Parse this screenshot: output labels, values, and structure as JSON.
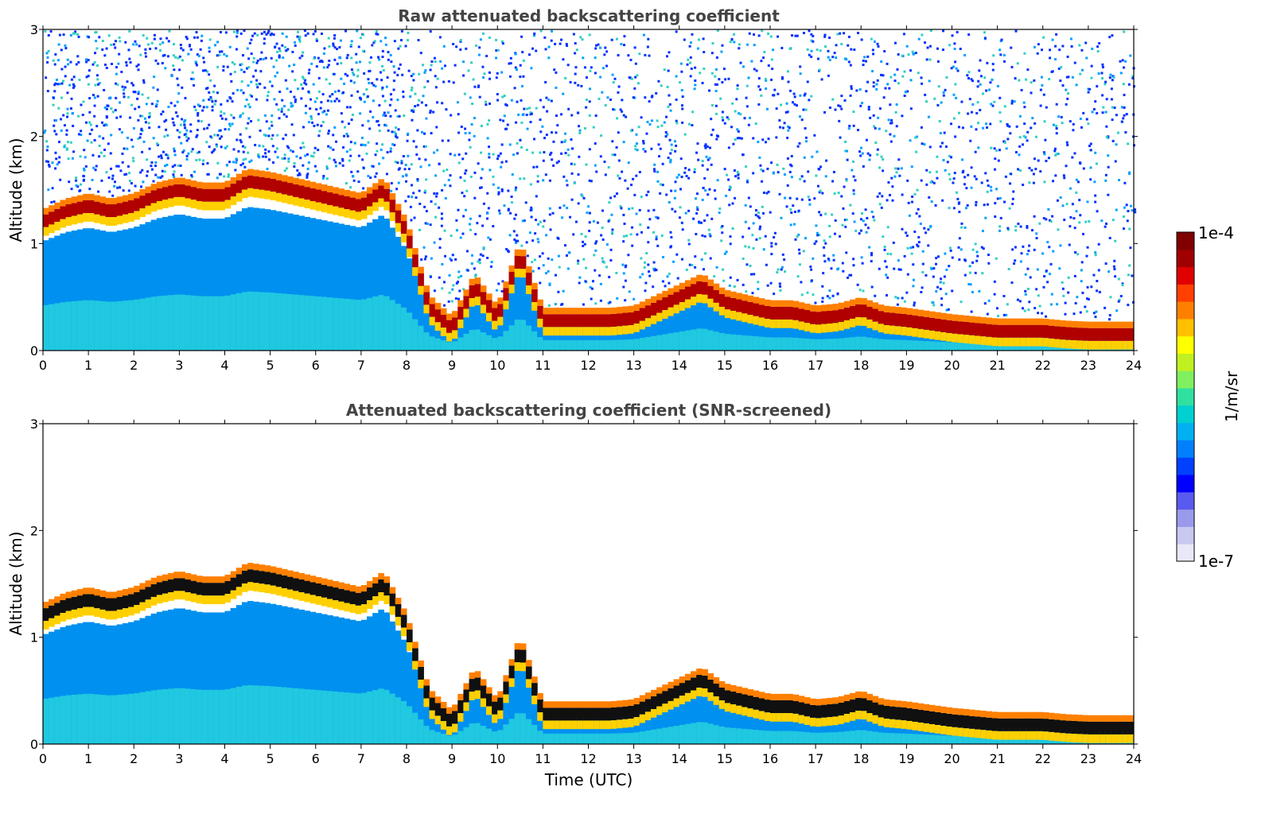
{
  "chart_data": [
    {
      "type": "heatmap",
      "title": "Raw attenuated backscattering coefficient",
      "xlabel": "",
      "ylabel": "Altitude (km)",
      "xlim": [
        0,
        24
      ],
      "ylim": [
        0,
        3
      ],
      "xticks": [
        "0",
        "1",
        "2",
        "3",
        "4",
        "5",
        "6",
        "7",
        "8",
        "9",
        "10",
        "11",
        "12",
        "13",
        "14",
        "15",
        "16",
        "17",
        "18",
        "19",
        "20",
        "21",
        "22",
        "23",
        "24"
      ],
      "yticks": [
        "0",
        "1",
        "2",
        "3"
      ],
      "layer_top_km": [
        [
          0,
          1.2
        ],
        [
          0.5,
          1.3
        ],
        [
          1,
          1.35
        ],
        [
          1.5,
          1.3
        ],
        [
          2,
          1.35
        ],
        [
          2.5,
          1.45
        ],
        [
          3,
          1.5
        ],
        [
          3.5,
          1.45
        ],
        [
          4,
          1.45
        ],
        [
          4.5,
          1.58
        ],
        [
          5,
          1.55
        ],
        [
          5.5,
          1.5
        ],
        [
          6,
          1.45
        ],
        [
          6.5,
          1.4
        ],
        [
          7,
          1.35
        ],
        [
          7.5,
          1.5
        ],
        [
          8,
          1.1
        ],
        [
          8.5,
          0.4
        ],
        [
          9,
          0.2
        ],
        [
          9.5,
          0.6
        ],
        [
          10,
          0.3
        ],
        [
          10.5,
          0.9
        ],
        [
          11,
          0.28
        ],
        [
          11.5,
          0.28
        ],
        [
          12,
          0.28
        ],
        [
          12.5,
          0.28
        ],
        [
          13,
          0.3
        ],
        [
          13.5,
          0.4
        ],
        [
          14,
          0.5
        ],
        [
          14.5,
          0.6
        ],
        [
          15,
          0.45
        ],
        [
          15.5,
          0.4
        ],
        [
          16,
          0.35
        ],
        [
          16.5,
          0.35
        ],
        [
          17,
          0.3
        ],
        [
          17.5,
          0.32
        ],
        [
          18,
          0.38
        ],
        [
          18.5,
          0.3
        ],
        [
          19,
          0.28
        ],
        [
          19.5,
          0.25
        ],
        [
          20,
          0.22
        ],
        [
          20.5,
          0.2
        ],
        [
          21,
          0.18
        ],
        [
          21.5,
          0.18
        ],
        [
          22,
          0.18
        ],
        [
          22.5,
          0.16
        ],
        [
          23,
          0.15
        ],
        [
          23.5,
          0.15
        ],
        [
          24,
          0.15
        ]
      ],
      "noise": "high",
      "screened": false
    },
    {
      "type": "heatmap",
      "title": "Attenuated backscattering coefficient (SNR-screened)",
      "xlabel": "Time (UTC)",
      "ylabel": "Altitude (km)",
      "xlim": [
        0,
        24
      ],
      "ylim": [
        0,
        3
      ],
      "xticks": [
        "0",
        "1",
        "2",
        "3",
        "4",
        "5",
        "6",
        "7",
        "8",
        "9",
        "10",
        "11",
        "12",
        "13",
        "14",
        "15",
        "16",
        "17",
        "18",
        "19",
        "20",
        "21",
        "22",
        "23",
        "24"
      ],
      "yticks": [
        "0",
        "1",
        "2",
        "3"
      ],
      "layer_top_km": [
        [
          0,
          1.2
        ],
        [
          0.5,
          1.3
        ],
        [
          1,
          1.35
        ],
        [
          1.5,
          1.3
        ],
        [
          2,
          1.35
        ],
        [
          2.5,
          1.45
        ],
        [
          3,
          1.5
        ],
        [
          3.5,
          1.45
        ],
        [
          4,
          1.45
        ],
        [
          4.5,
          1.58
        ],
        [
          5,
          1.55
        ],
        [
          5.5,
          1.5
        ],
        [
          6,
          1.45
        ],
        [
          6.5,
          1.4
        ],
        [
          7,
          1.35
        ],
        [
          7.5,
          1.5
        ],
        [
          8,
          1.1
        ],
        [
          8.5,
          0.4
        ],
        [
          9,
          0.2
        ],
        [
          9.5,
          0.6
        ],
        [
          10,
          0.3
        ],
        [
          10.5,
          0.9
        ],
        [
          11,
          0.28
        ],
        [
          11.5,
          0.28
        ],
        [
          12,
          0.28
        ],
        [
          12.5,
          0.28
        ],
        [
          13,
          0.3
        ],
        [
          13.5,
          0.4
        ],
        [
          14,
          0.5
        ],
        [
          14.5,
          0.6
        ],
        [
          15,
          0.45
        ],
        [
          15.5,
          0.4
        ],
        [
          16,
          0.35
        ],
        [
          16.5,
          0.35
        ],
        [
          17,
          0.3
        ],
        [
          17.5,
          0.32
        ],
        [
          18,
          0.38
        ],
        [
          18.5,
          0.3
        ],
        [
          19,
          0.28
        ],
        [
          19.5,
          0.25
        ],
        [
          20,
          0.22
        ],
        [
          20.5,
          0.2
        ],
        [
          21,
          0.18
        ],
        [
          21.5,
          0.18
        ],
        [
          22,
          0.18
        ],
        [
          22.5,
          0.16
        ],
        [
          23,
          0.15
        ],
        [
          23.5,
          0.15
        ],
        [
          24,
          0.15
        ]
      ],
      "noise": "none",
      "screened": true
    }
  ],
  "colorbar": {
    "label": "1/m/sr",
    "max_label": "1e-4",
    "min_label": "1e-7",
    "colors": [
      "#e8e8f8",
      "#c8c8f0",
      "#9a9aec",
      "#5a5aee",
      "#0000ff",
      "#0040ff",
      "#0080ff",
      "#00b0f0",
      "#00d0d0",
      "#30e0a0",
      "#80f060",
      "#c0f020",
      "#ffff00",
      "#ffc000",
      "#ff8000",
      "#ff4000",
      "#e00000",
      "#a00000",
      "#800000"
    ]
  }
}
